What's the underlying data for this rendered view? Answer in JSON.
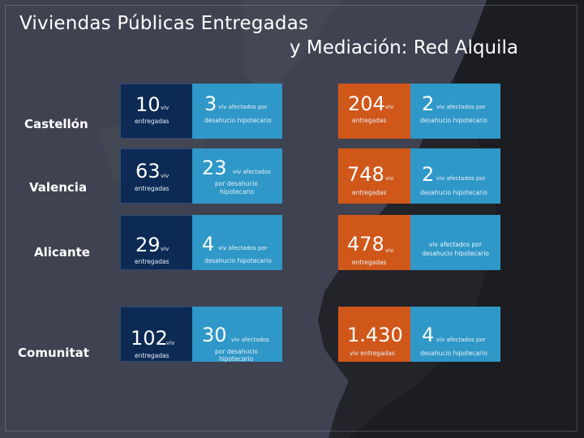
{
  "title": {
    "line1": "Viviendas Públicas Entregadas",
    "line2": "y Mediación: Red Alquila"
  },
  "rows": [
    {
      "label": "Castellón",
      "c1": {
        "value": "10",
        "unit": "viv",
        "sub": "entregadas"
      },
      "c2": {
        "value": "3",
        "unit": "viv afectados por",
        "sub": "desahucio hipotecario"
      },
      "c3": {
        "value": "204",
        "unit": "viv",
        "sub": "entregadas"
      },
      "c4": {
        "value": "2",
        "unit": "viv afectados por",
        "sub": "desahucio hipotecario"
      }
    },
    {
      "label": "Valencia",
      "c1": {
        "value": "63",
        "unit": "viv",
        "sub": "entregadas"
      },
      "c2": {
        "value": "23",
        "unit": "viv afectados",
        "sub1": "por desahucio",
        "sub2": "hipotecario"
      },
      "c3": {
        "value": "748",
        "unit": "viv",
        "sub": "entregadas"
      },
      "c4": {
        "value": "2",
        "unit": "viv afectados por",
        "sub": "desahucio hipotecario"
      }
    },
    {
      "label": "Alicante",
      "c1": {
        "value": "29",
        "unit": "viv",
        "sub": "entregadas"
      },
      "c2": {
        "value": "4",
        "unit": "viv afectados por",
        "sub": "desahucio hipotecario"
      },
      "c3": {
        "value": "478",
        "unit": "viv",
        "sub": "entregadas"
      },
      "c4": {
        "sub1": "viv afectados por",
        "sub2": "desahucio hipotecario"
      }
    },
    {
      "label": "Comunitat",
      "c1": {
        "value": "102",
        "unit": "viv",
        "sub": "entregadas"
      },
      "c2": {
        "value": "30",
        "unit": "viv afectados",
        "sub1": "por desahucio",
        "sub2": "hipotecario"
      },
      "c3": {
        "value": "1.430",
        "sub": "viv entregadas"
      },
      "c4": {
        "value": "4",
        "unit": "viv afectados por",
        "sub": "desahucio hipotecario"
      }
    }
  ],
  "colors": {
    "background": "#3f4250",
    "navy_tile": "#0d2a55",
    "light_blue_tile": "#2f98c8",
    "orange_tile": "#d0571a",
    "map_land": "#1c1d22"
  }
}
